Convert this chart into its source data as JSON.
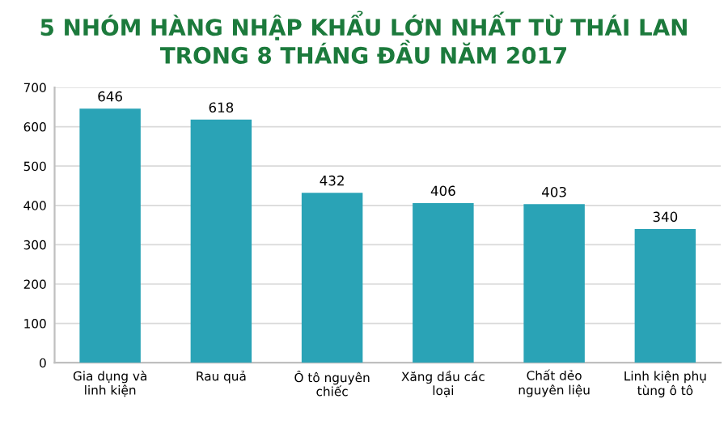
{
  "chart_data": {
    "type": "bar",
    "title": "5 NHÓM HÀNG NHẬP KHẨU LỚN NHẤT TỪ THÁI LAN TRONG 8 THÁNG ĐẦU NĂM 2017",
    "categories": [
      "Gia dụng và linh kiện",
      "Rau quả",
      "Ô tô nguyên chiếc",
      "Xăng dầu các loại",
      "Chất dẻo nguyên liệu",
      "Linh kiện phụ tùng ô tô"
    ],
    "values": [
      646,
      618,
      432,
      406,
      403,
      340
    ],
    "color": "#2aa3b6",
    "ylim": [
      0,
      700
    ],
    "yticks": [
      0,
      100,
      200,
      300,
      400,
      500,
      600,
      700
    ],
    "grid": "y",
    "data_labels": true
  }
}
